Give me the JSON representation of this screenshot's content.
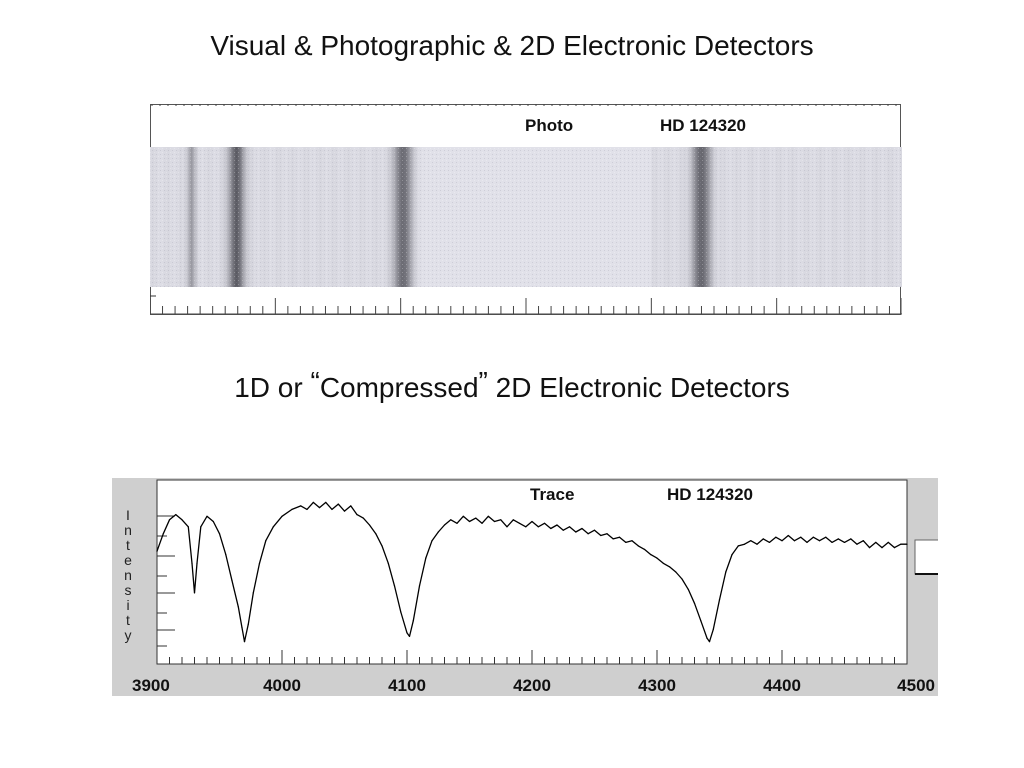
{
  "titles": {
    "top": "Visual & Photographic & 2D Electronic Detectors",
    "bottom_pre": "1D or ",
    "bottom_open_quote": "“",
    "bottom_word": "Compressed",
    "bottom_close_quote": "”",
    "bottom_post": " 2D Electronic Detectors"
  },
  "photo_panel": {
    "label": "Photo",
    "star": "HD 124320"
  },
  "trace_panel": {
    "label": "Trace",
    "star": "HD 124320",
    "ylabel": "Intensity",
    "ylabel_letters": [
      "I",
      "n",
      "t",
      "e",
      "n",
      "s",
      "i",
      "t",
      "y"
    ]
  },
  "chart_data": {
    "type": "line",
    "title": "",
    "xlabel": "",
    "ylabel": "Intensity",
    "xlim": [
      3900,
      4500
    ],
    "x_ticks": [
      3900,
      4000,
      4100,
      4200,
      4300,
      4400,
      4500
    ],
    "series": [
      {
        "name": "",
        "points": [
          [
            3900,
            0.62
          ],
          [
            3905,
            0.72
          ],
          [
            3910,
            0.8
          ],
          [
            3915,
            0.83
          ],
          [
            3920,
            0.8
          ],
          [
            3925,
            0.76
          ],
          [
            3928,
            0.55
          ],
          [
            3930,
            0.38
          ],
          [
            3932,
            0.55
          ],
          [
            3935,
            0.76
          ],
          [
            3940,
            0.82
          ],
          [
            3945,
            0.79
          ],
          [
            3950,
            0.72
          ],
          [
            3955,
            0.6
          ],
          [
            3960,
            0.45
          ],
          [
            3965,
            0.3
          ],
          [
            3968,
            0.18
          ],
          [
            3970,
            0.1
          ],
          [
            3973,
            0.2
          ],
          [
            3977,
            0.38
          ],
          [
            3982,
            0.55
          ],
          [
            3987,
            0.68
          ],
          [
            3993,
            0.76
          ],
          [
            4000,
            0.82
          ],
          [
            4008,
            0.86
          ],
          [
            4015,
            0.88
          ],
          [
            4020,
            0.86
          ],
          [
            4025,
            0.9
          ],
          [
            4030,
            0.87
          ],
          [
            4035,
            0.9
          ],
          [
            4040,
            0.86
          ],
          [
            4045,
            0.89
          ],
          [
            4050,
            0.85
          ],
          [
            4055,
            0.88
          ],
          [
            4060,
            0.83
          ],
          [
            4065,
            0.81
          ],
          [
            4070,
            0.77
          ],
          [
            4075,
            0.72
          ],
          [
            4080,
            0.65
          ],
          [
            4085,
            0.55
          ],
          [
            4090,
            0.42
          ],
          [
            4095,
            0.27
          ],
          [
            4100,
            0.15
          ],
          [
            4102,
            0.13
          ],
          [
            4105,
            0.22
          ],
          [
            4110,
            0.42
          ],
          [
            4115,
            0.58
          ],
          [
            4120,
            0.68
          ],
          [
            4125,
            0.73
          ],
          [
            4130,
            0.77
          ],
          [
            4135,
            0.8
          ],
          [
            4140,
            0.78
          ],
          [
            4145,
            0.82
          ],
          [
            4150,
            0.79
          ],
          [
            4155,
            0.81
          ],
          [
            4160,
            0.78
          ],
          [
            4165,
            0.82
          ],
          [
            4170,
            0.79
          ],
          [
            4175,
            0.8
          ],
          [
            4180,
            0.76
          ],
          [
            4185,
            0.8
          ],
          [
            4190,
            0.78
          ],
          [
            4195,
            0.76
          ],
          [
            4200,
            0.79
          ],
          [
            4205,
            0.76
          ],
          [
            4210,
            0.78
          ],
          [
            4215,
            0.75
          ],
          [
            4220,
            0.77
          ],
          [
            4225,
            0.74
          ],
          [
            4230,
            0.76
          ],
          [
            4235,
            0.73
          ],
          [
            4240,
            0.75
          ],
          [
            4245,
            0.72
          ],
          [
            4250,
            0.74
          ],
          [
            4255,
            0.71
          ],
          [
            4260,
            0.72
          ],
          [
            4265,
            0.69
          ],
          [
            4270,
            0.7
          ],
          [
            4275,
            0.67
          ],
          [
            4280,
            0.68
          ],
          [
            4285,
            0.65
          ],
          [
            4290,
            0.63
          ],
          [
            4295,
            0.6
          ],
          [
            4300,
            0.58
          ],
          [
            4305,
            0.55
          ],
          [
            4310,
            0.53
          ],
          [
            4315,
            0.5
          ],
          [
            4320,
            0.46
          ],
          [
            4325,
            0.4
          ],
          [
            4330,
            0.32
          ],
          [
            4335,
            0.22
          ],
          [
            4340,
            0.12
          ],
          [
            4342,
            0.1
          ],
          [
            4345,
            0.17
          ],
          [
            4350,
            0.34
          ],
          [
            4355,
            0.5
          ],
          [
            4360,
            0.6
          ],
          [
            4365,
            0.65
          ],
          [
            4370,
            0.66
          ],
          [
            4375,
            0.68
          ],
          [
            4380,
            0.66
          ],
          [
            4385,
            0.69
          ],
          [
            4390,
            0.67
          ],
          [
            4395,
            0.7
          ],
          [
            4400,
            0.68
          ],
          [
            4405,
            0.71
          ],
          [
            4410,
            0.68
          ],
          [
            4415,
            0.7
          ],
          [
            4420,
            0.67
          ],
          [
            4425,
            0.7
          ],
          [
            4430,
            0.68
          ],
          [
            4435,
            0.7
          ],
          [
            4440,
            0.67
          ],
          [
            4445,
            0.69
          ],
          [
            4450,
            0.67
          ],
          [
            4455,
            0.69
          ],
          [
            4460,
            0.66
          ],
          [
            4465,
            0.68
          ],
          [
            4470,
            0.64
          ],
          [
            4475,
            0.67
          ],
          [
            4480,
            0.64
          ],
          [
            4485,
            0.67
          ],
          [
            4490,
            0.64
          ],
          [
            4495,
            0.66
          ],
          [
            4500,
            0.66
          ]
        ]
      }
    ],
    "grid": false,
    "background": "#ffffff",
    "frame_color": "#c8c8c8"
  },
  "photo_spectrum": {
    "xlim": [
      3900,
      4500
    ],
    "absorption_lines": [
      {
        "wavelength": 3933,
        "depth": 0.45,
        "width": 3
      },
      {
        "wavelength": 3969,
        "depth": 0.85,
        "width": 6
      },
      {
        "wavelength": 4102,
        "depth": 0.8,
        "width": 7
      },
      {
        "wavelength": 4340,
        "depth": 0.8,
        "width": 7
      }
    ]
  },
  "colors": {
    "text": "#111111",
    "trace_line": "#000000",
    "panel_gray": "#d0d0d0",
    "strip_base": "#c4c4cc",
    "line_dark": "#404048"
  }
}
